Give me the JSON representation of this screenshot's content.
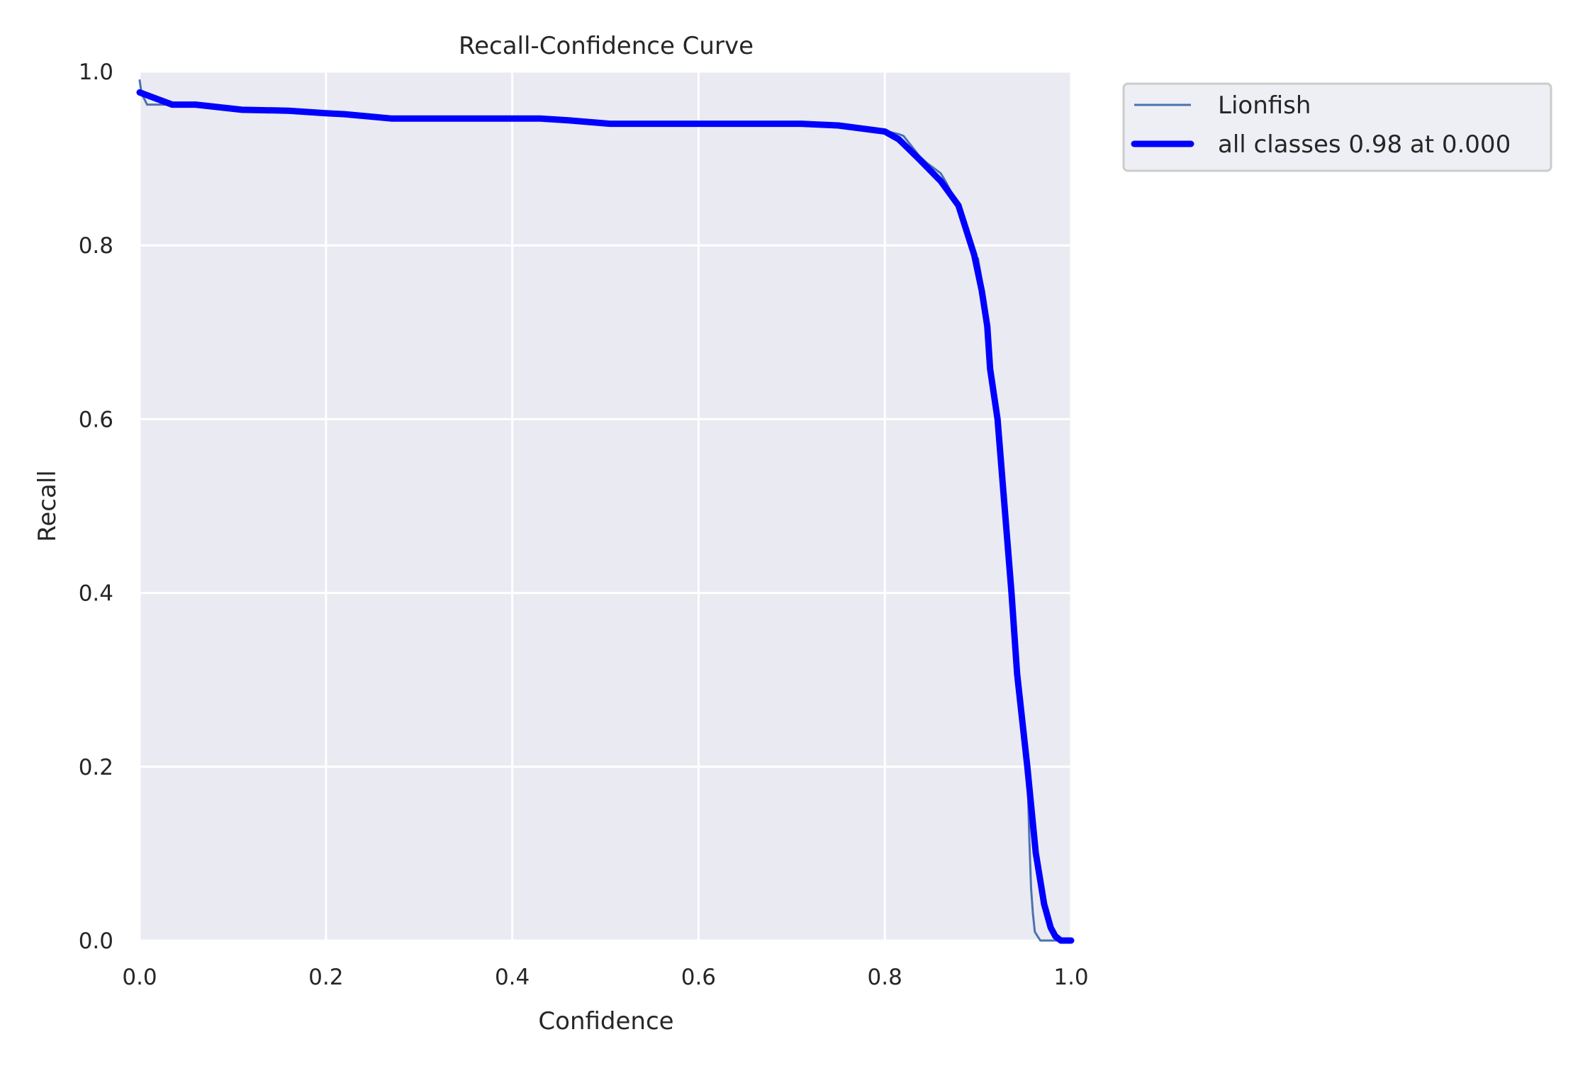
{
  "chart_data": {
    "type": "line",
    "title": "Recall-Confidence Curve",
    "xlabel": "Confidence",
    "ylabel": "Recall",
    "xlim": [
      0.0,
      1.0
    ],
    "ylim": [
      0.0,
      1.0
    ],
    "xticks": [
      "0.0",
      "0.2",
      "0.4",
      "0.6",
      "0.8",
      "1.0"
    ],
    "yticks": [
      "0.0",
      "0.2",
      "0.4",
      "0.6",
      "0.8",
      "1.0"
    ],
    "grid": true,
    "legend_position": "upper right, outside plot area",
    "series": [
      {
        "name": "Lionfish",
        "color": "#4c72b0",
        "linewidth": 3,
        "x": [
          0.0,
          0.002,
          0.008,
          0.03,
          0.06,
          0.11,
          0.16,
          0.2,
          0.27,
          0.35,
          0.43,
          0.505,
          0.6,
          0.71,
          0.8,
          0.815,
          0.82,
          0.837,
          0.845,
          0.86,
          0.865,
          0.879,
          0.884,
          0.89,
          0.896,
          0.9,
          0.904,
          0.91,
          0.913,
          0.921,
          0.925,
          0.936,
          0.942,
          0.953,
          0.955,
          0.957,
          0.959,
          0.961,
          0.964,
          0.967,
          1.0
        ],
        "y": [
          0.99,
          0.975,
          0.962,
          0.962,
          0.961,
          0.956,
          0.955,
          0.952,
          0.946,
          0.946,
          0.946,
          0.94,
          0.94,
          0.94,
          0.932,
          0.928,
          0.926,
          0.903,
          0.895,
          0.883,
          0.874,
          0.846,
          0.83,
          0.809,
          0.789,
          0.785,
          0.76,
          0.707,
          0.66,
          0.6,
          0.57,
          0.4,
          0.307,
          0.2,
          0.12,
          0.06,
          0.031,
          0.01,
          0.005,
          0.0,
          0.0
        ]
      },
      {
        "name": "all classes 0.98 at 0.000",
        "color": "#0000ff",
        "linewidth": 9,
        "x": [
          0.0,
          0.01,
          0.035,
          0.06,
          0.11,
          0.16,
          0.2,
          0.22,
          0.27,
          0.35,
          0.43,
          0.46,
          0.505,
          0.6,
          0.71,
          0.75,
          0.8,
          0.815,
          0.837,
          0.86,
          0.879,
          0.89,
          0.896,
          0.904,
          0.91,
          0.913,
          0.921,
          0.936,
          0.942,
          0.953,
          0.962,
          0.971,
          0.978,
          0.983,
          0.989,
          1.0
        ],
        "y": [
          0.976,
          0.972,
          0.962,
          0.962,
          0.956,
          0.955,
          0.952,
          0.951,
          0.946,
          0.946,
          0.946,
          0.944,
          0.94,
          0.94,
          0.94,
          0.938,
          0.931,
          0.922,
          0.899,
          0.874,
          0.846,
          0.809,
          0.789,
          0.748,
          0.707,
          0.658,
          0.6,
          0.4,
          0.307,
          0.2,
          0.101,
          0.042,
          0.015,
          0.005,
          0.0,
          0.0
        ]
      }
    ],
    "legend": [
      {
        "label": "Lionfish",
        "color": "#4c72b0"
      },
      {
        "label": "all classes 0.98 at 0.000",
        "color": "#0000ff"
      }
    ],
    "colors": {
      "axes_background": "#eaeaf2",
      "grid": "#ffffff",
      "text": "#262626",
      "legend_background": "#eaeaf2",
      "legend_border": "#cccccc"
    }
  }
}
